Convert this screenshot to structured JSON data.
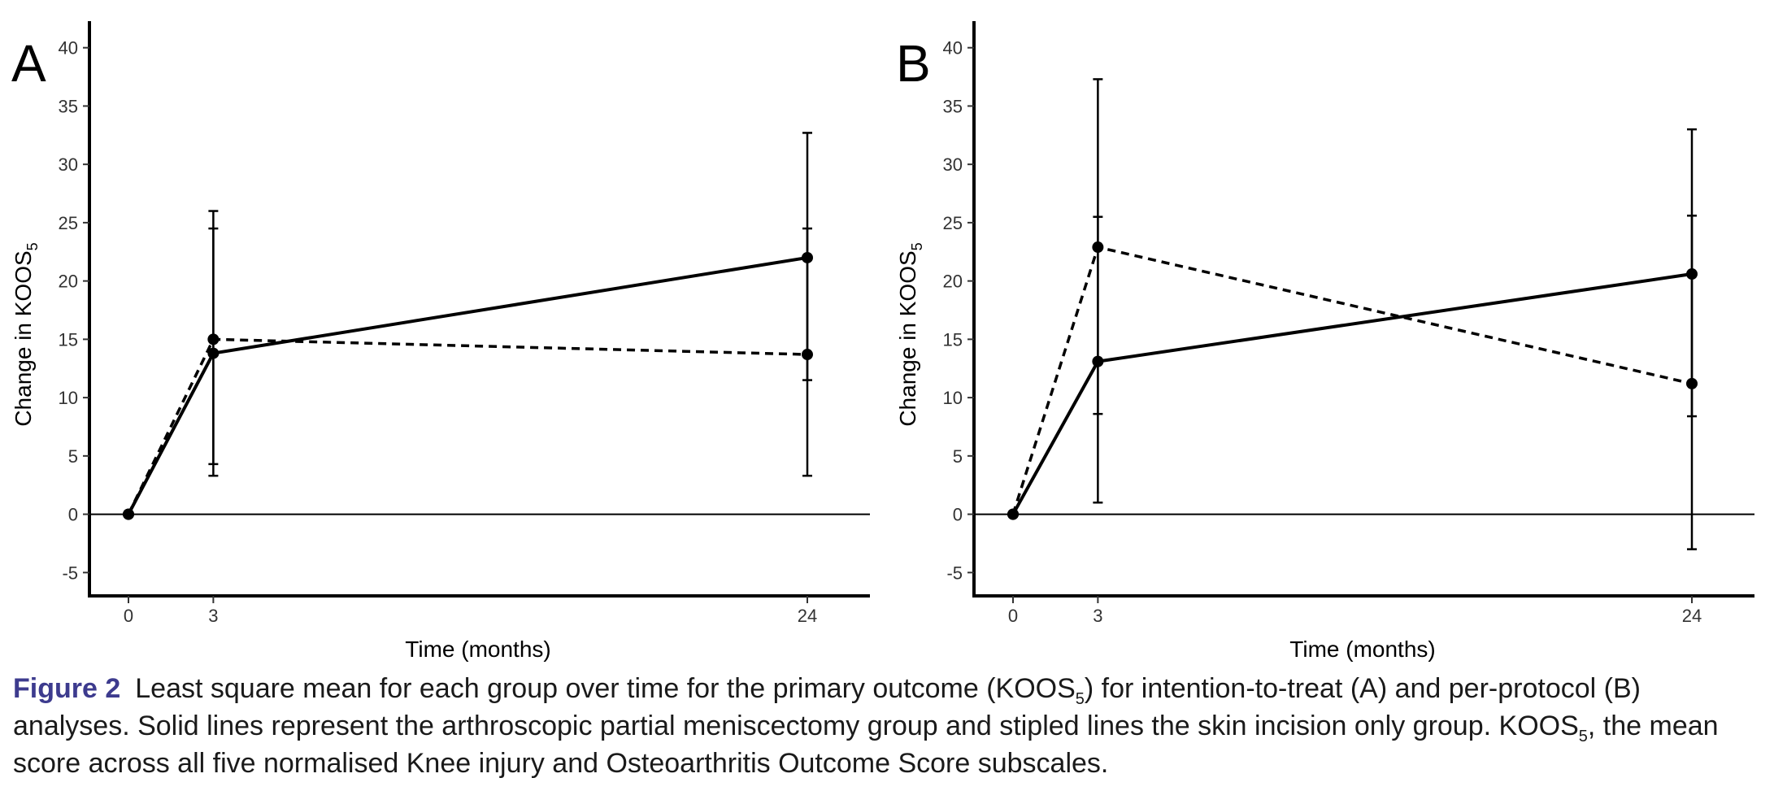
{
  "chart_data": [
    {
      "type": "line",
      "panel": "A",
      "xlabel": "Time (months)",
      "ylabel_main": "Change in KOOS",
      "ylabel_sub": "5",
      "x": [
        0,
        3,
        24
      ],
      "x_ticks": [
        0,
        3,
        24
      ],
      "ylim": [
        -7,
        42
      ],
      "y_ticks": [
        -5,
        0,
        5,
        10,
        15,
        20,
        25,
        30,
        35,
        40
      ],
      "grid": false,
      "series": [
        {
          "style": "solid",
          "values": [
            0,
            13.8,
            22.0
          ],
          "err_low": [
            0,
            3.3,
            11.5
          ],
          "err_high": [
            0,
            24.5,
            32.7
          ]
        },
        {
          "style": "dashed",
          "values": [
            0,
            15.0,
            13.7
          ],
          "err_low": [
            0,
            4.3,
            3.3
          ],
          "err_high": [
            0,
            26.0,
            24.5
          ]
        }
      ]
    },
    {
      "type": "line",
      "panel": "B",
      "xlabel": "Time (months)",
      "ylabel_main": "Change in KOOS",
      "ylabel_sub": "5",
      "x": [
        0,
        3,
        24
      ],
      "x_ticks": [
        0,
        3,
        24
      ],
      "ylim": [
        -7,
        42
      ],
      "y_ticks": [
        -5,
        0,
        5,
        10,
        15,
        20,
        25,
        30,
        35,
        40
      ],
      "grid": false,
      "series": [
        {
          "style": "solid",
          "values": [
            0,
            13.1,
            20.6
          ],
          "err_low": [
            0,
            1.0,
            8.4
          ],
          "err_high": [
            0,
            25.5,
            33.0
          ]
        },
        {
          "style": "dashed",
          "values": [
            0,
            22.9,
            11.2
          ],
          "err_low": [
            0,
            8.6,
            -3.0
          ],
          "err_high": [
            0,
            37.3,
            25.6
          ]
        }
      ]
    }
  ],
  "caption": {
    "label": "Figure 2",
    "part1": "Least square mean for each group over time for the primary outcome (KOOS",
    "sub1": "5",
    "part2": ") for intention-to-treat (A) and per-protocol (B) analyses. Solid lines represent the arthroscopic partial meniscectomy group and stipled lines the skin incision only group. KOOS",
    "sub2": "5",
    "part3": ", the mean score across all five normalised Knee injury and Osteoarthritis Outcome Score subscales."
  }
}
